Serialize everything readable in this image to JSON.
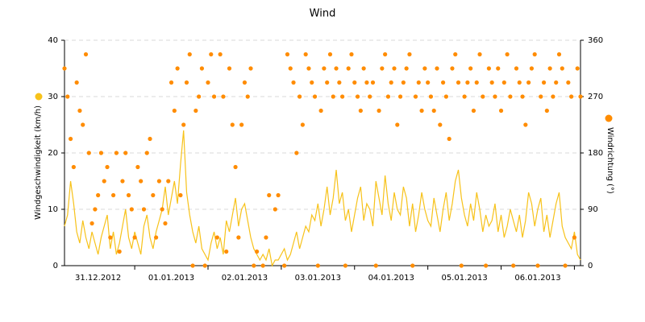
{
  "chart_data": {
    "type": "line_scatter",
    "title": "Wind",
    "x": [
      1,
      2,
      3,
      4,
      5,
      6,
      7,
      8,
      9,
      10,
      11,
      12,
      13,
      14,
      15,
      16,
      17,
      18,
      19,
      20,
      21,
      22,
      23,
      24,
      25,
      26,
      27,
      28,
      29,
      30,
      31,
      32,
      33,
      34,
      35,
      36,
      37,
      38,
      39,
      40,
      41,
      42,
      43,
      44,
      45,
      46,
      47,
      48,
      49,
      50,
      51,
      52,
      53,
      54,
      55,
      56,
      57,
      58,
      59,
      60,
      61,
      62,
      63,
      64,
      65,
      66,
      67,
      68,
      69,
      70,
      71,
      72,
      73,
      74,
      75,
      76,
      77,
      78,
      79,
      80,
      81,
      82,
      83,
      84,
      85,
      86,
      87,
      88,
      89,
      90,
      91,
      92,
      93,
      94,
      95,
      96,
      97,
      98,
      99,
      100,
      101,
      102,
      103,
      104,
      105,
      106,
      107,
      108,
      109,
      110,
      111,
      112,
      113,
      114,
      115,
      116,
      117,
      118,
      119,
      120,
      121,
      122,
      123,
      124,
      125,
      126,
      127,
      128,
      129,
      130,
      131,
      132,
      133,
      134,
      135,
      136,
      137,
      138,
      139,
      140,
      141,
      142,
      143,
      144,
      145,
      146,
      147,
      148,
      149,
      150,
      151,
      152,
      153,
      154,
      155,
      156,
      157,
      158,
      159,
      160,
      161,
      162,
      163,
      164,
      165,
      166,
      167,
      168,
      169,
      170
    ],
    "xlim": [
      1,
      170
    ],
    "xticks": [
      {
        "value": 12,
        "label": "31.12.2012"
      },
      {
        "value": 36,
        "label": "01.01.2013"
      },
      {
        "value": 60,
        "label": "02.01.2013"
      },
      {
        "value": 84,
        "label": "03.01.2013"
      },
      {
        "value": 108,
        "label": "04.01.2013"
      },
      {
        "value": 132,
        "label": "05.01.2013"
      },
      {
        "value": 156,
        "label": "06.01.2013"
      }
    ],
    "ylim": [
      0,
      40
    ],
    "yticks": [
      0,
      10,
      20,
      30,
      40
    ],
    "y2lim": [
      0,
      360
    ],
    "y2ticks": [
      0,
      90,
      180,
      270,
      360
    ],
    "grid": true,
    "series": [
      {
        "name": "Windgeschwindigkeit (km/h)",
        "kind": "line",
        "color": "#f7c21a",
        "values": [
          7,
          9,
          15,
          11,
          6,
          4,
          8,
          5,
          3,
          6,
          4,
          2,
          5,
          7,
          9,
          3,
          6,
          2,
          4,
          7,
          10,
          5,
          3,
          6,
          4,
          2,
          7,
          9,
          5,
          3,
          6,
          8,
          10,
          14,
          9,
          12,
          15,
          11,
          18,
          24,
          13,
          9,
          6,
          4,
          7,
          3,
          2,
          1,
          4,
          6,
          3,
          5,
          2,
          8,
          6,
          9,
          12,
          7,
          10,
          11,
          8,
          5,
          3,
          2,
          1,
          2,
          1,
          3,
          0,
          1,
          1,
          2,
          3,
          1,
          2,
          4,
          6,
          3,
          5,
          7,
          6,
          9,
          8,
          11,
          7,
          10,
          14,
          9,
          12,
          17,
          11,
          13,
          8,
          10,
          6,
          9,
          12,
          14,
          8,
          11,
          10,
          7,
          15,
          12,
          9,
          16,
          11,
          8,
          13,
          10,
          9,
          14,
          12,
          7,
          11,
          6,
          9,
          13,
          10,
          8,
          7,
          12,
          9,
          6,
          10,
          13,
          8,
          11,
          15,
          17,
          12,
          9,
          7,
          11,
          8,
          13,
          10,
          6,
          9,
          7,
          8,
          11,
          6,
          9,
          5,
          7,
          10,
          8,
          6,
          9,
          5,
          8,
          13,
          11,
          7,
          10,
          12,
          6,
          9,
          5,
          8,
          11,
          13,
          7,
          5,
          4,
          3,
          6,
          2,
          1
        ]
      },
      {
        "name": "Windrichtung (°)",
        "kind": "scatter",
        "axis": "y2",
        "color": "#ff8c00",
        "values": [
          315,
          270,
          202.5,
          157.5,
          292.5,
          247.5,
          225,
          337.5,
          180,
          67.5,
          90,
          112.5,
          180,
          135,
          157.5,
          45,
          112.5,
          180,
          22.5,
          135,
          180,
          112.5,
          90,
          45,
          157.5,
          135,
          90,
          180,
          202.5,
          112.5,
          45,
          135,
          90,
          67.5,
          135,
          292.5,
          247.5,
          315,
          112.5,
          225,
          292.5,
          337.5,
          0,
          247.5,
          270,
          315,
          0,
          292.5,
          337.5,
          270,
          45,
          337.5,
          270,
          22.5,
          315,
          225,
          157.5,
          45,
          225,
          292.5,
          270,
          315,
          0,
          22.5,
          null,
          0,
          45,
          112.5,
          null,
          90,
          112.5,
          null,
          0,
          337.5,
          315,
          292.5,
          180,
          270,
          225,
          337.5,
          315,
          292.5,
          270,
          0,
          247.5,
          315,
          292.5,
          337.5,
          270,
          315,
          292.5,
          270,
          0,
          315,
          337.5,
          292.5,
          270,
          247.5,
          315,
          292.5,
          270,
          292.5,
          0,
          247.5,
          315,
          337.5,
          270,
          292.5,
          315,
          225,
          270,
          292.5,
          315,
          337.5,
          0,
          270,
          292.5,
          247.5,
          315,
          292.5,
          270,
          247.5,
          315,
          225,
          292.5,
          270,
          202.5,
          315,
          337.5,
          292.5,
          0,
          270,
          292.5,
          315,
          247.5,
          292.5,
          337.5,
          270,
          0,
          315,
          292.5,
          270,
          315,
          247.5,
          292.5,
          337.5,
          270,
          0,
          315,
          292.5,
          270,
          225,
          292.5,
          315,
          337.5,
          0,
          270,
          292.5,
          247.5,
          315,
          270,
          292.5,
          337.5,
          315,
          0,
          292.5,
          270,
          45,
          315,
          270
        ]
      }
    ]
  }
}
